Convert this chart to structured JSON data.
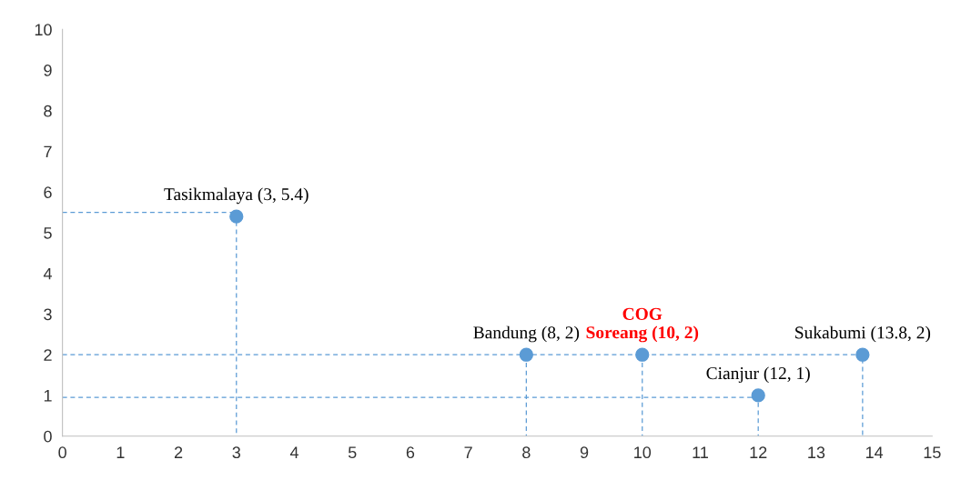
{
  "chart_data": {
    "type": "scatter",
    "series": [
      {
        "type": "line",
        "x": [
          0,
          3,
          3
        ],
        "values": [
          5.5,
          5.5,
          0
        ],
        "color": "#5b9bd5",
        "line_style": "dashed",
        "marker": "none"
      },
      {
        "type": "line",
        "x": [
          0,
          13.8,
          13.8
        ],
        "values": [
          2,
          2,
          0
        ],
        "color": "#5b9bd5",
        "line_style": "dashed",
        "marker": "none"
      },
      {
        "type": "line",
        "x": [
          8,
          8
        ],
        "values": [
          2,
          0
        ],
        "color": "#5b9bd5",
        "line_style": "dashed",
        "marker": "none"
      },
      {
        "type": "line",
        "x": [
          10,
          10
        ],
        "values": [
          2,
          0
        ],
        "color": "#5b9bd5",
        "line_style": "dashed",
        "marker": "none"
      },
      {
        "type": "line",
        "x": [
          0,
          12,
          12
        ],
        "values": [
          0.95,
          0.95,
          0
        ],
        "color": "#5b9bd5",
        "line_style": "dashed",
        "marker": "none"
      },
      {
        "x": [
          3,
          8,
          10,
          13.8,
          12
        ],
        "values": [
          5.4,
          2,
          2,
          2,
          1
        ],
        "color": "#5b9bd5",
        "marker": "circle"
      }
    ],
    "annotations": [
      {
        "text": "Tasikmalaya (3, 5.4)",
        "x": 3,
        "y": 5.4
      },
      {
        "text": "Bandung (8, 2)",
        "x": 8,
        "y": 2
      },
      {
        "text": "COG\nSoreang (10, 2)",
        "x": 10,
        "y": 2
      },
      {
        "text": "Sukabumi (13.8, 2)",
        "x": 13.8,
        "y": 2
      },
      {
        "text": "Cianjur (12, 1)",
        "x": 12,
        "y": 1
      }
    ],
    "xlim": [
      0,
      15
    ],
    "xticks": [
      0,
      1,
      2,
      3,
      4,
      5,
      6,
      7,
      8,
      9,
      10,
      11,
      12,
      13,
      14,
      15
    ],
    "ylim": [
      0,
      10
    ],
    "yticks": [
      0,
      1,
      2,
      3,
      4,
      5,
      6,
      7,
      8,
      9,
      10
    ]
  }
}
